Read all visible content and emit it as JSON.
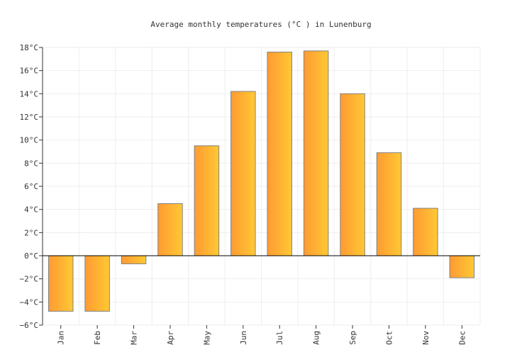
{
  "chart_data": {
    "type": "bar",
    "title": "Average monthly temperatures (°C ) in Lunenburg",
    "categories": [
      "Jan",
      "Feb",
      "Mar",
      "Apr",
      "May",
      "Jun",
      "Jul",
      "Aug",
      "Sep",
      "Oct",
      "Nov",
      "Dec"
    ],
    "values": [
      -4.8,
      -4.8,
      -0.7,
      4.5,
      9.5,
      14.2,
      17.6,
      17.7,
      14.0,
      8.9,
      4.1,
      -1.9
    ],
    "ylim": [
      -6,
      18
    ],
    "yticks": [
      -6,
      -4,
      -2,
      0,
      2,
      4,
      6,
      8,
      10,
      12,
      14,
      16,
      18
    ],
    "ytick_labels": [
      "−6°C",
      "−4°C",
      "−2°C",
      "0°C",
      "2°C",
      "4°C",
      "6°C",
      "8°C",
      "10°C",
      "12°C",
      "14°C",
      "16°C",
      "18°C"
    ],
    "grid": true,
    "colors": {
      "bar_left": "#ff9a33",
      "bar_right": "#ffc933",
      "bar_stroke": "#808080",
      "grid": "#eeeeee",
      "zero_line": "#000000"
    }
  }
}
